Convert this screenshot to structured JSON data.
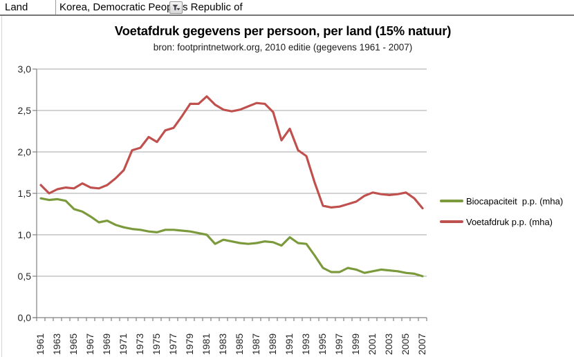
{
  "spreadsheet": {
    "label_cell": "Land",
    "value_cell": "Korea, Democratic People's Republic of"
  },
  "chart": {
    "title": "Voetafdruk gegevens per persoon, per land (15% natuur)",
    "subtitle": "bron: footprintnetwork.org, 2010 editie (gegevens 1961 - 2007)"
  },
  "chart_data": {
    "type": "line",
    "title": "Voetafdruk gegevens per persoon, per land (15% natuur)",
    "subtitle": "bron: footprintnetwork.org, 2010 editie (gegevens 1961 - 2007)",
    "x": [
      1961,
      1962,
      1963,
      1964,
      1965,
      1966,
      1967,
      1968,
      1969,
      1970,
      1971,
      1972,
      1973,
      1974,
      1975,
      1976,
      1977,
      1978,
      1979,
      1980,
      1981,
      1982,
      1983,
      1984,
      1985,
      1986,
      1987,
      1988,
      1989,
      1990,
      1991,
      1992,
      1993,
      1994,
      1995,
      1996,
      1997,
      1998,
      1999,
      2000,
      2001,
      2002,
      2003,
      2004,
      2005,
      2006,
      2007
    ],
    "series": [
      {
        "name": "Biocapaciteit  p.p. (mha)",
        "color": "#7A9A3C",
        "values": [
          1.44,
          1.42,
          1.43,
          1.41,
          1.31,
          1.28,
          1.22,
          1.15,
          1.17,
          1.12,
          1.09,
          1.07,
          1.06,
          1.04,
          1.03,
          1.06,
          1.06,
          1.05,
          1.04,
          1.02,
          1.0,
          0.89,
          0.94,
          0.92,
          0.9,
          0.89,
          0.9,
          0.92,
          0.91,
          0.87,
          0.97,
          0.9,
          0.89,
          0.75,
          0.6,
          0.55,
          0.55,
          0.6,
          0.58,
          0.54,
          0.56,
          0.58,
          0.57,
          0.56,
          0.54,
          0.53,
          0.5
        ]
      },
      {
        "name": "Voetafdruk p.p. (mha)",
        "color": "#C0504D",
        "values": [
          1.6,
          1.5,
          1.55,
          1.57,
          1.56,
          1.62,
          1.57,
          1.56,
          1.6,
          1.68,
          1.78,
          2.02,
          2.05,
          2.18,
          2.12,
          2.26,
          2.29,
          2.43,
          2.58,
          2.58,
          2.67,
          2.57,
          2.51,
          2.49,
          2.51,
          2.55,
          2.59,
          2.58,
          2.48,
          2.14,
          2.28,
          2.02,
          1.95,
          1.63,
          1.35,
          1.33,
          1.34,
          1.37,
          1.4,
          1.47,
          1.51,
          1.49,
          1.48,
          1.49,
          1.51,
          1.44,
          1.32
        ]
      }
    ],
    "x_tick_labels": [
      "1961",
      "1963",
      "1965",
      "1967",
      "1969",
      "1971",
      "1973",
      "1975",
      "1977",
      "1979",
      "1981",
      "1983",
      "1985",
      "1987",
      "1989",
      "1991",
      "1993",
      "1995",
      "1997",
      "1999",
      "2001",
      "2003",
      "2005",
      "2007"
    ],
    "y_tick_labels": [
      "0,0",
      "0,5",
      "1,0",
      "1,5",
      "2,0",
      "2,5",
      "3,0"
    ],
    "ylim": [
      0,
      3
    ],
    "grid": true,
    "legend_position": "right",
    "grid_color": "#A6A6A6",
    "axis_color": "#808080"
  }
}
